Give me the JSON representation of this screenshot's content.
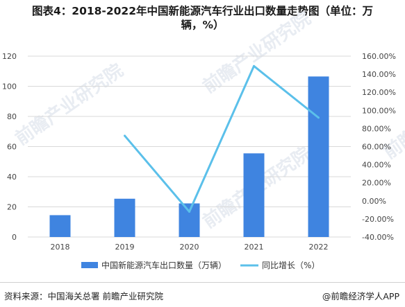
{
  "title": {
    "line1": "图表4：2018-2022年中国新能源汽车行业出口数量走势图（单位：万",
    "line2": "辆，%）"
  },
  "source": "资料来源：中国海关总署 前瞻产业研究院",
  "credit": "@前瞻经济学人APP",
  "watermark": "前瞻产业研究院",
  "colors": {
    "bar": "#3f84e0",
    "line": "#5bc0ea",
    "grid": "#d9d9d9",
    "axis": "#555555"
  },
  "chart_data": {
    "type": "bar",
    "categories": [
      "2018",
      "2019",
      "2020",
      "2021",
      "2022"
    ],
    "series": [
      {
        "name": "中国新能源汽车出口数量（万辆）",
        "type": "bar",
        "axis": "left",
        "values": [
          14.5,
          25.4,
          22.3,
          55.5,
          106.5
        ]
      },
      {
        "name": "同比增长（%）",
        "type": "line",
        "axis": "right",
        "values": [
          null,
          72.0,
          -12.0,
          149.0,
          92.0
        ]
      }
    ],
    "y_left": {
      "min": 0,
      "max": 120,
      "ticks": [
        "0",
        "20",
        "40",
        "60",
        "80",
        "100",
        "120"
      ]
    },
    "y_right": {
      "min": -40,
      "max": 160,
      "ticks": [
        "-40.00%",
        "-20.00%",
        "0.00%",
        "20.00%",
        "40.00%",
        "60.00%",
        "80.00%",
        "100.00%",
        "120.00%",
        "140.00%",
        "160.00%"
      ]
    },
    "grid": true,
    "legend": "bottom"
  }
}
